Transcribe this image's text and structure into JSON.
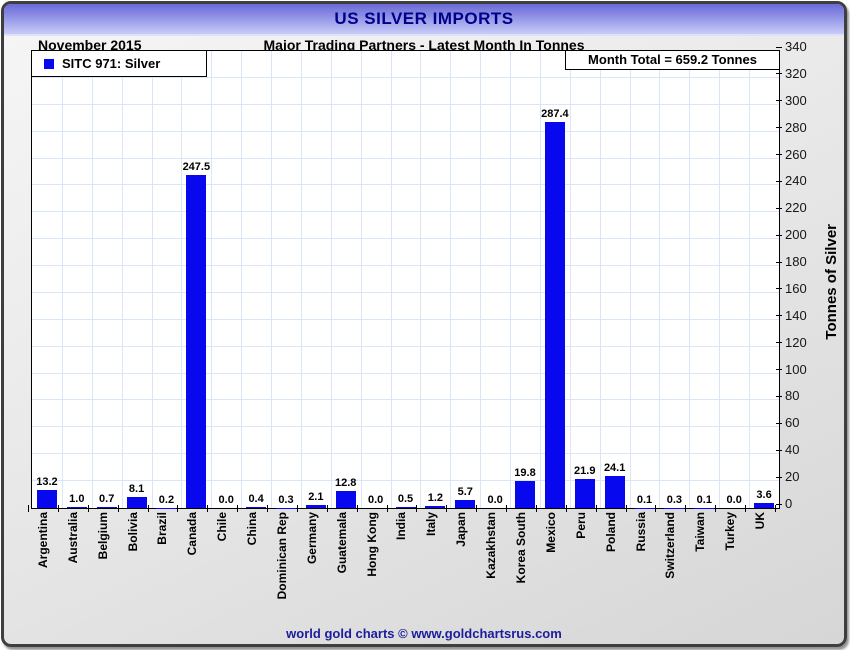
{
  "chart_data": {
    "type": "bar",
    "title": "US SILVER IMPORTS",
    "period": "November 2015",
    "subtitle": "Major Trading Partners - Latest Month In Tonnes",
    "legend": "SITC 971: Silver",
    "month_total_text": "Month Total = 659.2 Tonnes",
    "month_total_value": 659.2,
    "ylabel": "Tonnes of Silver",
    "ylim": [
      0,
      340
    ],
    "ytick_step": 20,
    "grid": true,
    "legend_position": "top-left",
    "value_labels": true,
    "bar_color": "#0808ee",
    "grid_color": "#d9e6f7",
    "categories": [
      "Argentina",
      "Australia",
      "Belgium",
      "Bolivia",
      "Brazil",
      "Canada",
      "Chile",
      "China",
      "Dominican Rep",
      "Germany",
      "Guatemala",
      "Hong Kong",
      "India",
      "Italy",
      "Japan",
      "Kazakhstan",
      "Korea South",
      "Mexico",
      "Peru",
      "Poland",
      "Russia",
      "Switzerland",
      "Taiwan",
      "Turkey",
      "UK"
    ],
    "values": [
      13.2,
      1.0,
      0.7,
      8.1,
      0.2,
      247.5,
      0.0,
      0.4,
      0.3,
      2.1,
      12.8,
      0.0,
      0.5,
      1.2,
      5.7,
      0.0,
      19.8,
      287.4,
      21.9,
      24.1,
      0.1,
      0.3,
      0.1,
      0.0,
      3.6
    ]
  },
  "footer": {
    "credit": "world gold charts © www.goldchartsrus.com"
  },
  "colors": {
    "title_text": "#00008b",
    "footer_text": "#1c1c9c",
    "bar": "#0808ee",
    "grid": "#d9e6f7",
    "header_top": "#6a6ad6",
    "header_bottom": "#c9ccf7"
  }
}
